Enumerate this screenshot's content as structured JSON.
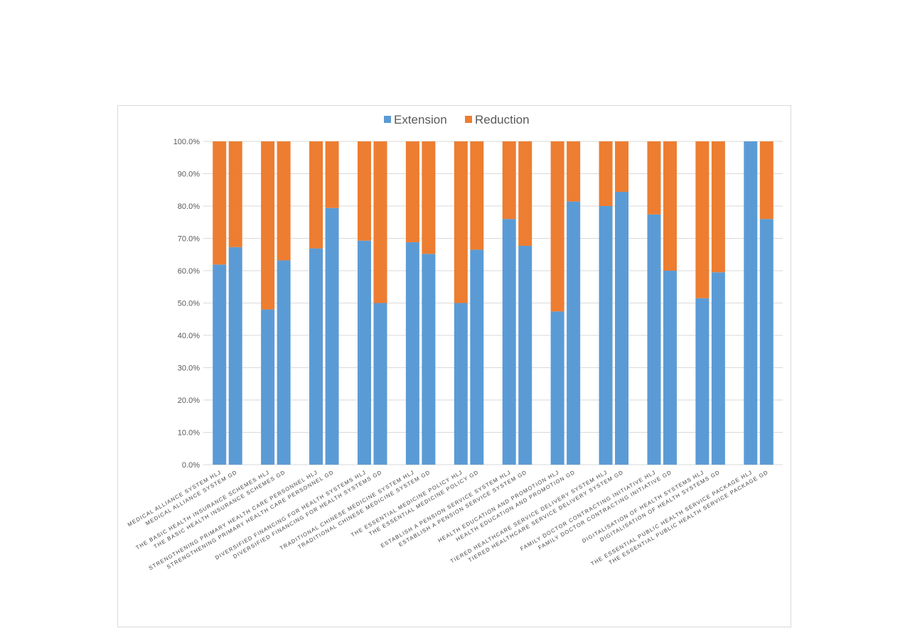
{
  "chart_data": {
    "type": "bar",
    "stacked": true,
    "percent": true,
    "legend_position": "top",
    "grid": true,
    "ylim": [
      0,
      100
    ],
    "yticks": [
      "0.0%",
      "10.0%",
      "20.0%",
      "30.0%",
      "40.0%",
      "50.0%",
      "60.0%",
      "70.0%",
      "80.0%",
      "90.0%",
      "100.0%"
    ],
    "categories": [
      "MEDICAL ALLIANCE SYSTEM HLJ",
      "MEDICAL ALLIANCE SYSTEM GD",
      "THE BASIC HEALTH INSURANCE SCHEMES HLJ",
      "THE BASIC HEALTH INSURANCE SCHEMES GD",
      "STRENGTHENING PRIMARY HEALTH CARE PERSONNEL HLJ",
      "STRENGTHENING PRIMARY HEALTH CARE PERSONNEL GD",
      "DIVERSIFIED FINANCING  FOR  HEALTH SYSTEMS HLJ",
      "DIVERSIFIED FINANCING  FOR  HEALTH SYSTEMS GD",
      "TRADITIONAL CHINESE MEDICINE SYSTEM  HLJ",
      "TRADITIONAL CHINESE MEDICINE SYSTEM  GD",
      "THE ESSENTIAL MEDICINE POLICY HLJ",
      "THE ESSENTIAL MEDICINE POLICY GD",
      "ESTABLISH A PENSION SERVICE SYSTEM HLJ",
      "ESTABLISH A PENSION SERVICE SYSTEM GD",
      "HEALTH EDUCATION AND PROMOTION HLJ",
      "HEALTH EDUCATION AND PROMOTION GD",
      "TIERED HEALTHCARE SERVICE DELIVERY SYSTEM HLJ",
      "TIERED HEALTHCARE SERVICE DELIVERY SYSTEM GD",
      "FAMILY DOCTOR CONTRACTING INITIATIVE HLJ",
      "FAMILY DOCTOR CONTRACTING INITIATIVE GD",
      "DIGITALISATION OF HEALTH SYSTEMS HLJ",
      "DIGITALISATION OF HEALTH SYSTEMS GD",
      "THE ESSENTIAL PUBLIC HEALTH SERVICE PACKAGE HLJ",
      "THE ESSENTIAL PUBLIC HEALTH SERVICE PACKAGE GD"
    ],
    "series": [
      {
        "name": "Extension",
        "color": "#5b9bd5",
        "values": [
          61.9,
          67.3,
          48.0,
          63.2,
          66.9,
          79.4,
          69.3,
          50.0,
          68.8,
          65.2,
          50.0,
          66.5,
          76.0,
          67.7,
          47.4,
          81.4,
          80.0,
          84.4,
          77.4,
          60.0,
          51.5,
          59.5,
          100.0,
          76.0
        ]
      },
      {
        "name": "Reduction",
        "color": "#ed7d31",
        "values": [
          38.1,
          32.7,
          52.0,
          36.8,
          33.1,
          20.6,
          30.7,
          50.0,
          31.2,
          34.8,
          50.0,
          33.5,
          24.0,
          32.3,
          52.6,
          18.6,
          20.0,
          15.6,
          22.6,
          40.0,
          48.5,
          40.5,
          0.0,
          24.0
        ]
      }
    ],
    "gridline_color": "#d9d9d9"
  }
}
